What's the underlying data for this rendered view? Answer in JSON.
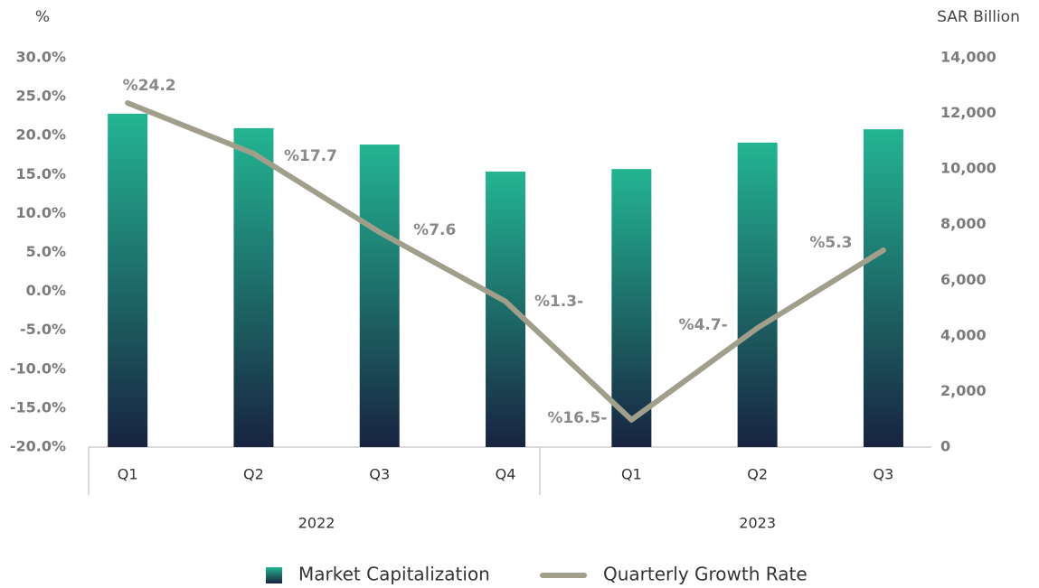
{
  "chart_data": {
    "type": "bar_line",
    "y_title": "%",
    "y2_title": "SAR Billion",
    "categories": [
      "Q1",
      "Q2",
      "Q3",
      "Q4",
      "Q1",
      "Q2",
      "Q3"
    ],
    "groups": [
      {
        "label": "2022",
        "count": 4
      },
      {
        "label": "2023",
        "count": 3
      }
    ],
    "series": [
      {
        "name": "Market Capitalization",
        "type": "bar",
        "axis": "y2",
        "color": [
          "#23b592",
          "#182340"
        ],
        "values": [
          11990,
          11470,
          10880,
          9910,
          10000,
          10950,
          11430
        ]
      },
      {
        "name": "Quarterly Growth Rate",
        "type": "line",
        "axis": "y",
        "color": "#a19e8c",
        "values": [
          24.2,
          17.7,
          7.6,
          -1.3,
          -16.5,
          -4.7,
          5.3
        ],
        "value_labels": [
          "%24.2",
          "%17.7",
          "%7.6",
          "%1.3-",
          "%16.5-",
          "%4.7-",
          "%5.3"
        ]
      }
    ],
    "ylim": [
      -20,
      30
    ],
    "yticks": [
      {
        "value": -20,
        "label": "-20.0%"
      },
      {
        "value": -15,
        "label": "-15.0%"
      },
      {
        "value": -10,
        "label": "-10.0%"
      },
      {
        "value": -5,
        "label": "-5.0%"
      },
      {
        "value": 0,
        "label": "0.0%"
      },
      {
        "value": 5,
        "label": "5.0%"
      },
      {
        "value": 10,
        "label": "10.0%"
      },
      {
        "value": 15,
        "label": "15.0%"
      },
      {
        "value": 20,
        "label": "20.0%"
      },
      {
        "value": 25,
        "label": "25.0%"
      },
      {
        "value": 30,
        "label": "30.0%"
      }
    ],
    "y2lim": [
      0,
      14000
    ],
    "y2ticks": [
      0,
      {
        "value": 2000,
        "label": "2,000"
      },
      {
        "value": 4000,
        "label": "4,000"
      },
      {
        "value": 6000,
        "label": "6,000"
      },
      {
        "value": 8000,
        "label": "8,000"
      },
      {
        "value": 10000,
        "label": "10,000"
      },
      {
        "value": 12000,
        "label": "12,000"
      },
      {
        "value": 14000,
        "label": "14,000"
      }
    ],
    "legend": "bottom"
  }
}
